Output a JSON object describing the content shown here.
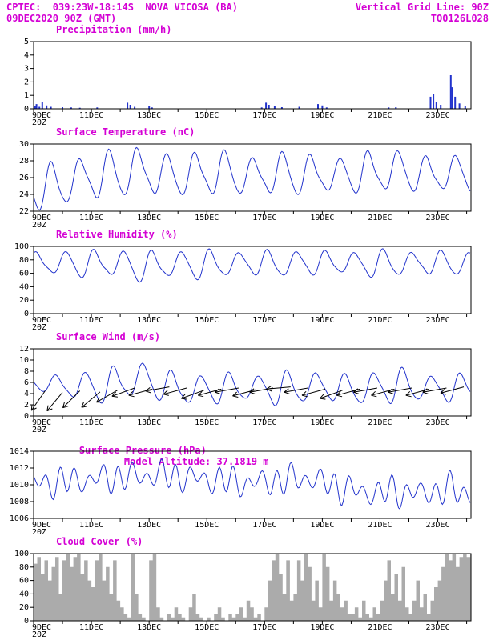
{
  "header": {
    "line1_left": "CPTEC:  039:23W-18:14S  NOVA VICOSA (BA)",
    "line1_right": "Vertical Grid Line: 90Z",
    "line2_left": "09DEC2020 90Z (GMT)",
    "line2_right": "TQ0126L028"
  },
  "colors": {
    "title": "#d400d4",
    "line": "#2233cc",
    "bar": "#2233cc",
    "cloud_fill": "#ababab",
    "arrow": "#000000",
    "axis": "#000000"
  },
  "axis": {
    "xlim": [
      9,
      24.15
    ],
    "tick_labels": [
      [
        9,
        "9DEC"
      ],
      [
        11,
        "11DEC"
      ],
      [
        13,
        "13DEC"
      ],
      [
        15,
        "15DEC"
      ],
      [
        17,
        "17DEC"
      ],
      [
        19,
        "19DEC"
      ],
      [
        21,
        "21DEC"
      ],
      [
        23,
        "23DEC"
      ]
    ],
    "sub_label": "20Z"
  },
  "chart_data": [
    {
      "id": "precipitation",
      "type": "bar",
      "title": "Precipitation (mm/h)",
      "ylabel": "mm/h",
      "ylim": [
        0,
        5
      ],
      "yticks": [
        0,
        1,
        2,
        3,
        4,
        5
      ],
      "bars": [
        [
          9.05,
          0.2
        ],
        [
          9.1,
          0.35
        ],
        [
          9.2,
          0.15
        ],
        [
          9.3,
          0.5
        ],
        [
          9.45,
          0.25
        ],
        [
          9.6,
          0.15
        ],
        [
          10.0,
          0.12
        ],
        [
          10.3,
          0.1
        ],
        [
          10.6,
          0.08
        ],
        [
          11.2,
          0.1
        ],
        [
          12.25,
          0.45
        ],
        [
          12.35,
          0.3
        ],
        [
          12.5,
          0.15
        ],
        [
          13.0,
          0.2
        ],
        [
          13.1,
          0.1
        ],
        [
          16.9,
          0.1
        ],
        [
          17.05,
          0.45
        ],
        [
          17.15,
          0.3
        ],
        [
          17.35,
          0.2
        ],
        [
          17.6,
          0.12
        ],
        [
          18.2,
          0.15
        ],
        [
          18.85,
          0.35
        ],
        [
          19.0,
          0.25
        ],
        [
          19.15,
          0.1
        ],
        [
          21.3,
          0.1
        ],
        [
          21.55,
          0.12
        ],
        [
          22.75,
          0.9
        ],
        [
          22.85,
          1.1
        ],
        [
          22.95,
          0.5
        ],
        [
          23.1,
          0.3
        ],
        [
          23.45,
          2.5
        ],
        [
          23.5,
          1.6
        ],
        [
          23.6,
          0.9
        ],
        [
          23.75,
          0.4
        ],
        [
          23.95,
          0.2
        ]
      ]
    },
    {
      "id": "surface-temperature",
      "type": "diurnal",
      "title": "Surface Temperature (nC)",
      "ylim": [
        22,
        30
      ],
      "yticks": [
        22,
        24,
        26,
        28,
        30
      ],
      "days": [
        9,
        10,
        11,
        12,
        13,
        14,
        15,
        16,
        17,
        18,
        19,
        20,
        21,
        22,
        23,
        24
      ],
      "daily_min": [
        22.3,
        23.4,
        23.8,
        24.0,
        24.2,
        23.9,
        24.1,
        24.3,
        24.0,
        24.2,
        24.4,
        24.3,
        24.5,
        24.6,
        24.4,
        24.5
      ],
      "daily_max": [
        27.3,
        28.2,
        28.8,
        29.6,
        28.4,
        28.9,
        29.0,
        28.2,
        28.8,
        28.6,
        28.0,
        28.9,
        29.1,
        28.3,
        28.6,
        28.0
      ],
      "peak_frac": 0.625
    },
    {
      "id": "relative-humidity",
      "type": "diurnal",
      "title": "Relative Humidity (%)",
      "ylim": [
        0,
        100
      ],
      "yticks": [
        0,
        20,
        40,
        60,
        80,
        100
      ],
      "days": [
        9,
        10,
        11,
        12,
        13,
        14,
        15,
        16,
        17,
        18,
        19,
        20,
        21,
        22,
        23,
        24
      ],
      "daily_min": [
        60,
        55,
        58,
        48,
        55,
        52,
        55,
        60,
        55,
        58,
        62,
        55,
        57,
        60,
        58,
        60
      ],
      "daily_max": [
        90,
        92,
        93,
        92,
        90,
        93,
        92,
        90,
        93,
        92,
        90,
        92,
        93,
        90,
        92,
        90
      ],
      "peak_frac": 0.125
    },
    {
      "id": "surface-wind",
      "type": "diurnal",
      "title": "Surface Wind (m/s)",
      "ylim": [
        0,
        12
      ],
      "yticks": [
        0,
        2,
        4,
        6,
        8,
        10,
        12
      ],
      "days": [
        9,
        10,
        11,
        12,
        13,
        14,
        15,
        16,
        17,
        18,
        19,
        20,
        21,
        22,
        23,
        24
      ],
      "daily_min": [
        4.5,
        3.0,
        2.5,
        3.5,
        3.0,
        2.0,
        2.5,
        3.0,
        2.0,
        2.5,
        3.0,
        2.0,
        2.5,
        3.0,
        2.5,
        4.0
      ],
      "daily_max": [
        7.0,
        7.5,
        8.0,
        9.8,
        8.0,
        7.0,
        7.5,
        7.0,
        7.5,
        8.0,
        7.0,
        7.5,
        8.5,
        7.0,
        7.5,
        6.5
      ],
      "peak_frac": 0.8,
      "arrows": [
        [
          9.4,
          4.5,
          235
        ],
        [
          10.0,
          4.2,
          230
        ],
        [
          10.6,
          4.5,
          225
        ],
        [
          11.3,
          4.3,
          220
        ],
        [
          11.9,
          4.6,
          210
        ],
        [
          12.5,
          5.0,
          200
        ],
        [
          13.1,
          4.8,
          195
        ],
        [
          13.7,
          5.2,
          190
        ],
        [
          14.3,
          5.0,
          195
        ],
        [
          14.9,
          4.6,
          200
        ],
        [
          15.5,
          4.8,
          195
        ],
        [
          16.1,
          5.0,
          190
        ],
        [
          16.7,
          4.7,
          195
        ],
        [
          17.3,
          5.0,
          190
        ],
        [
          17.9,
          5.2,
          185
        ],
        [
          18.5,
          5.0,
          190
        ],
        [
          19.1,
          4.8,
          195
        ],
        [
          19.7,
          4.6,
          200
        ],
        [
          20.3,
          4.8,
          195
        ],
        [
          20.9,
          5.0,
          190
        ],
        [
          21.5,
          4.8,
          195
        ],
        [
          22.1,
          5.0,
          190
        ],
        [
          22.7,
          4.8,
          195
        ],
        [
          23.3,
          5.0,
          190
        ],
        [
          23.9,
          5.2,
          195
        ]
      ]
    },
    {
      "id": "surface-pressure",
      "type": "semidiurnal",
      "title": "Surface Pressure (hPa)",
      "subtitle": "Model Altitude: 37.1819 m",
      "ylim": [
        1006,
        1014
      ],
      "yticks": [
        1006,
        1008,
        1010,
        1012,
        1014
      ],
      "days": [
        9,
        10,
        11,
        12,
        13,
        14,
        15,
        16,
        17,
        18,
        19,
        20,
        21,
        22,
        23,
        24
      ],
      "daily_mean": [
        1010.2,
        1010.5,
        1010.8,
        1011.0,
        1011.2,
        1010.8,
        1010.5,
        1010.2,
        1010.5,
        1010.8,
        1009.8,
        1009.0,
        1009.2,
        1009.0,
        1009.5,
        1008.5
      ],
      "amp": 1.7,
      "peak_frac": 0.42
    },
    {
      "id": "cloud-cover",
      "type": "area",
      "title": "Cloud Cover (%)",
      "ylim": [
        0,
        100
      ],
      "yticks": [
        0,
        20,
        40,
        60,
        80,
        100
      ],
      "x_start": 9,
      "x_step": 0.125,
      "values": [
        85,
        95,
        70,
        90,
        60,
        80,
        95,
        40,
        90,
        100,
        80,
        95,
        100,
        70,
        90,
        60,
        50,
        90,
        100,
        60,
        80,
        40,
        90,
        30,
        20,
        10,
        5,
        100,
        40,
        10,
        5,
        0,
        90,
        100,
        20,
        5,
        0,
        10,
        5,
        20,
        10,
        5,
        0,
        20,
        40,
        10,
        5,
        0,
        5,
        0,
        10,
        20,
        5,
        0,
        10,
        5,
        10,
        20,
        5,
        30,
        20,
        5,
        10,
        0,
        20,
        60,
        90,
        100,
        70,
        40,
        90,
        30,
        40,
        90,
        60,
        100,
        80,
        30,
        60,
        20,
        100,
        80,
        30,
        60,
        40,
        20,
        30,
        10,
        10,
        20,
        5,
        30,
        10,
        5,
        20,
        10,
        30,
        60,
        90,
        40,
        70,
        30,
        80,
        20,
        10,
        30,
        60,
        20,
        40,
        10,
        30,
        50,
        60,
        80,
        100,
        90,
        100,
        80,
        95,
        100,
        95,
        100,
        90,
        100
      ]
    }
  ]
}
